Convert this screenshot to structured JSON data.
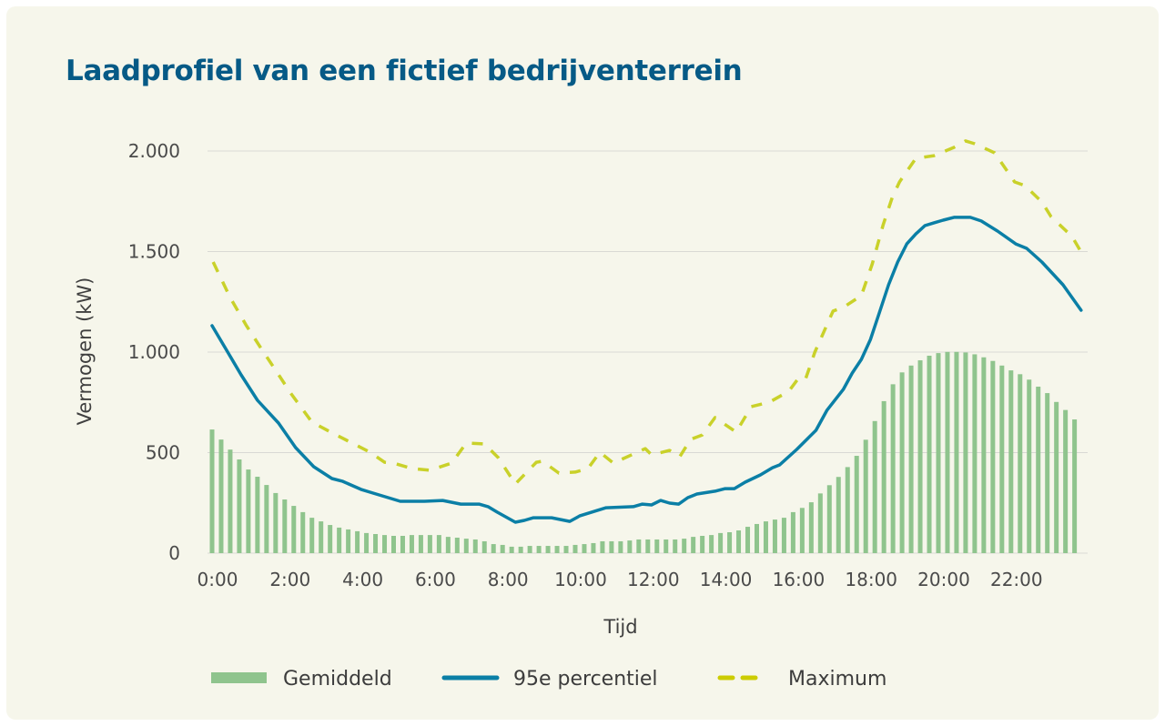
{
  "title": "Laadprofiel van een fictief bedrijventerrein",
  "chart_data": {
    "type": "bar+line",
    "title": "Laadprofiel van een fictief bedrijventerrein",
    "xlabel": "Tijd",
    "ylabel": "Vermogen (kW)",
    "xlim_hours": [
      0,
      24
    ],
    "ylim": [
      0,
      2000
    ],
    "grid": true,
    "legend_position": "bottom",
    "x_ticks": [
      {
        "hour": 0,
        "label": "0:00"
      },
      {
        "hour": 2,
        "label": "2:00"
      },
      {
        "hour": 4,
        "label": "4:00"
      },
      {
        "hour": 6,
        "label": "6:00"
      },
      {
        "hour": 8,
        "label": "8:00"
      },
      {
        "hour": 10,
        "label": "10:00"
      },
      {
        "hour": 12,
        "label": "12:00"
      },
      {
        "hour": 14,
        "label": "14:00"
      },
      {
        "hour": 16,
        "label": "16:00"
      },
      {
        "hour": 18,
        "label": "18:00"
      },
      {
        "hour": 20,
        "label": "20:00"
      },
      {
        "hour": 22,
        "label": "22:00"
      }
    ],
    "y_ticks": [
      {
        "value": 0,
        "label": "0"
      },
      {
        "value": 500,
        "label": "500"
      },
      {
        "value": 1000,
        "label": "1.000"
      },
      {
        "value": 1500,
        "label": "1.500"
      },
      {
        "value": 2000,
        "label": "2.000"
      }
    ],
    "legend": [
      {
        "name": "Gemiddeld",
        "kind": "bar",
        "color": "#8fc48d"
      },
      {
        "name": "95e percentiel",
        "kind": "line",
        "color": "#0b7fa6"
      },
      {
        "name": "Maximum",
        "kind": "dashed",
        "color": "#c9d12a"
      }
    ],
    "bar_interval_minutes": 15,
    "series": [
      {
        "name": "Gemiddeld",
        "type": "bar",
        "color": "#8fc48d",
        "values": [
          615,
          565,
          515,
          466,
          416,
          380,
          339,
          299,
          267,
          235,
          204,
          176,
          158,
          140,
          127,
          118,
          109,
          100,
          95,
          90,
          86,
          86,
          90,
          90,
          90,
          90,
          81,
          77,
          72,
          68,
          59,
          45,
          41,
          32,
          32,
          36,
          36,
          36,
          36,
          36,
          41,
          45,
          50,
          59,
          59,
          59,
          63,
          68,
          68,
          68,
          68,
          68,
          72,
          81,
          86,
          90,
          100,
          104,
          113,
          131,
          145,
          158,
          167,
          176,
          204,
          225,
          253,
          297,
          338,
          379,
          428,
          484,
          564,
          657,
          756,
          840,
          899,
          933,
          959,
          982,
          995,
          1001,
          1001,
          998,
          989,
          974,
          956,
          933,
          909,
          890,
          863,
          828,
          796,
          752,
          712,
          665
        ]
      },
      {
        "name": "95e percentiel",
        "type": "line",
        "color": "#0b7fa6",
        "points": [
          [
            0,
            1131
          ],
          [
            0.4,
            1009
          ],
          [
            0.8,
            887
          ],
          [
            1.25,
            760
          ],
          [
            1.6,
            692
          ],
          [
            1.83,
            647
          ],
          [
            2.3,
            525
          ],
          [
            2.8,
            430
          ],
          [
            3.3,
            371
          ],
          [
            3.6,
            357
          ],
          [
            4.1,
            317
          ],
          [
            4.35,
            303
          ],
          [
            4.85,
            276
          ],
          [
            5.18,
            258
          ],
          [
            5.85,
            258
          ],
          [
            6.35,
            262
          ],
          [
            6.85,
            244
          ],
          [
            7.35,
            244
          ],
          [
            7.6,
            231
          ],
          [
            7.85,
            204
          ],
          [
            8.35,
            154
          ],
          [
            8.6,
            163
          ],
          [
            8.85,
            176
          ],
          [
            9.35,
            176
          ],
          [
            9.85,
            158
          ],
          [
            10.13,
            186
          ],
          [
            10.85,
            226
          ],
          [
            11.6,
            231
          ],
          [
            11.85,
            244
          ],
          [
            12.1,
            240
          ],
          [
            12.35,
            262
          ],
          [
            12.6,
            249
          ],
          [
            12.85,
            244
          ],
          [
            13.1,
            276
          ],
          [
            13.35,
            294
          ],
          [
            13.85,
            308
          ],
          [
            14.13,
            321
          ],
          [
            14.38,
            321
          ],
          [
            14.68,
            353
          ],
          [
            15.1,
            389
          ],
          [
            15.43,
            425
          ],
          [
            15.63,
            439
          ],
          [
            16.1,
            516
          ],
          [
            16.63,
            611
          ],
          [
            16.93,
            710
          ],
          [
            17.38,
            814
          ],
          [
            17.63,
            896
          ],
          [
            17.88,
            964
          ],
          [
            18.13,
            1063
          ],
          [
            18.38,
            1199
          ],
          [
            18.63,
            1335
          ],
          [
            18.88,
            1448
          ],
          [
            19.13,
            1538
          ],
          [
            19.38,
            1588
          ],
          [
            19.63,
            1629
          ],
          [
            19.88,
            1643
          ],
          [
            20.13,
            1656
          ],
          [
            20.43,
            1670
          ],
          [
            20.88,
            1670
          ],
          [
            21.18,
            1652
          ],
          [
            21.63,
            1602
          ],
          [
            22.13,
            1538
          ],
          [
            22.43,
            1516
          ],
          [
            22.85,
            1448
          ],
          [
            23.43,
            1335
          ],
          [
            23.93,
            1208
          ]
        ]
      },
      {
        "name": "Maximum",
        "type": "line-dashed",
        "color": "#c9d12a",
        "points": [
          [
            0.03,
            1448
          ],
          [
            0.5,
            1271
          ],
          [
            0.93,
            1136
          ],
          [
            1.35,
            1018
          ],
          [
            1.75,
            910
          ],
          [
            2.18,
            792
          ],
          [
            2.75,
            652
          ],
          [
            3.13,
            615
          ],
          [
            3.85,
            548
          ],
          [
            4.35,
            502
          ],
          [
            4.75,
            452
          ],
          [
            5,
            448
          ],
          [
            5.5,
            421
          ],
          [
            6,
            412
          ],
          [
            6.6,
            448
          ],
          [
            7,
            548
          ],
          [
            7.5,
            543
          ],
          [
            7.88,
            475
          ],
          [
            8.35,
            344
          ],
          [
            8.93,
            452
          ],
          [
            9.1,
            457
          ],
          [
            9.55,
            398
          ],
          [
            10,
            403
          ],
          [
            10.35,
            421
          ],
          [
            10.68,
            502
          ],
          [
            11.05,
            448
          ],
          [
            11.93,
            520
          ],
          [
            12.1,
            489
          ],
          [
            12.6,
            511
          ],
          [
            12.88,
            480
          ],
          [
            13.18,
            566
          ],
          [
            13.5,
            588
          ],
          [
            13.85,
            674
          ],
          [
            14.43,
            602
          ],
          [
            14.85,
            729
          ],
          [
            15.35,
            751
          ],
          [
            15.88,
            805
          ],
          [
            16.18,
            878
          ],
          [
            16.35,
            870
          ],
          [
            16.6,
            1000
          ],
          [
            17.1,
            1204
          ],
          [
            17.38,
            1222
          ],
          [
            17.88,
            1281
          ],
          [
            18.18,
            1439
          ],
          [
            18.48,
            1634
          ],
          [
            18.73,
            1769
          ],
          [
            18.93,
            1846
          ],
          [
            19.38,
            1964
          ],
          [
            19.88,
            1977
          ],
          [
            20.43,
            2018
          ],
          [
            20.75,
            2050
          ],
          [
            21,
            2036
          ],
          [
            21.55,
            1991
          ],
          [
            22.1,
            1846
          ],
          [
            22.38,
            1828
          ],
          [
            22.85,
            1747
          ],
          [
            23.1,
            1674
          ],
          [
            23.68,
            1575
          ],
          [
            23.93,
            1498
          ]
        ]
      }
    ]
  }
}
